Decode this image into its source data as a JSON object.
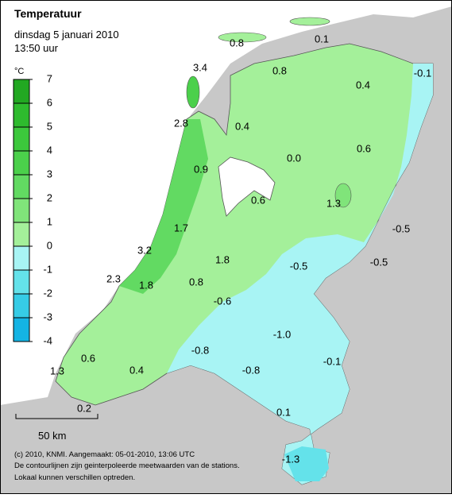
{
  "header": {
    "title": "Temperatuur",
    "subtitle": "dinsdag 5 januari 2010",
    "time": "13:50 uur"
  },
  "legend": {
    "unit": "°C",
    "ticks": [
      7,
      6,
      5,
      4,
      3,
      2,
      1,
      0,
      -1,
      -2,
      -3,
      -4
    ],
    "colors": [
      "#22a822",
      "#2ebb2e",
      "#3cc83c",
      "#4bd04b",
      "#62da62",
      "#80e47a",
      "#a4f09a",
      "#a8f4f4",
      "#64e2ea",
      "#36cce6",
      "#14b4e4"
    ]
  },
  "stations": [
    "0.8",
    "0.1",
    "3.4",
    "0.8",
    "-0.1",
    "0.4",
    "2.8",
    "0.4",
    "0.6",
    "0.0",
    "0.9",
    "0.6",
    "1.3",
    "-0.5",
    "1.7",
    "3.2",
    "1.8",
    "-0.5",
    "-0.5",
    "2.3",
    "1.8",
    "0.8",
    "-0.6",
    "-1.0",
    "-0.8",
    "-0.1",
    "0.6",
    "0.4",
    "-0.8",
    "1.3",
    "0.1",
    "0.2",
    "-1.3"
  ],
  "scale": "50 km",
  "footer": [
    "(c) 2010, KNMI. Aangemaakt: 05-01-2010, 13:06 UTC",
    "De contourlijnen zijn geinterpoleerde meetwaarden van de stations.",
    "Lokaal kunnen verschillen optreden."
  ]
}
